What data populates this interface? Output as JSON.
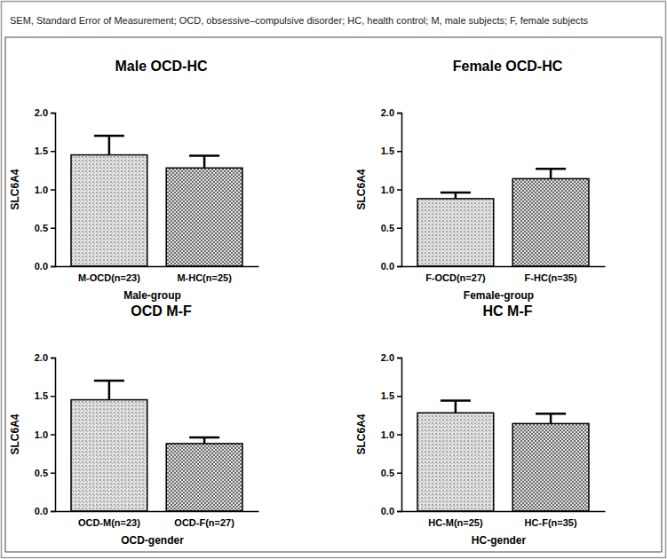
{
  "caption": "SEM, Standard Error of Measurement; OCD, obsessive–compulsive disorder; HC, health control; M, male subjects; F, female subjects",
  "chart_data": [
    {
      "type": "bar",
      "title": "Male OCD-HC",
      "x_label": "Male-group",
      "y_label": "SLC6A4",
      "categories": [
        "M-OCD(n=23)",
        "M-HC(n=25)"
      ],
      "values": [
        1.45,
        1.28
      ],
      "errors": [
        0.25,
        0.16
      ],
      "colors": [
        "#a8a8a8",
        "#6a6a6a"
      ],
      "ylim": [
        0,
        2
      ],
      "yticks": [
        {
          "value": 0,
          "label": "0.0"
        },
        0.5,
        {
          "value": 1,
          "label": "1.0"
        },
        1.5,
        {
          "value": 2,
          "label": "2.0"
        }
      ]
    },
    {
      "type": "bar",
      "title": "Female OCD-HC",
      "x_label": "Female-group",
      "y_label": "SLC6A4",
      "categories": [
        "F-OCD(n=27)",
        "F-HC(n=35)"
      ],
      "values": [
        0.88,
        1.14
      ],
      "errors": [
        0.08,
        0.13
      ],
      "colors": [
        "#a8a8a8",
        "#6a6a6a"
      ],
      "ylim": [
        0,
        2
      ],
      "yticks": [
        {
          "value": 0,
          "label": "0.0"
        },
        0.5,
        {
          "value": 1,
          "label": "1.0"
        },
        1.5,
        {
          "value": 2,
          "label": "2.0"
        }
      ]
    },
    {
      "type": "bar",
      "title": "OCD M-F",
      "x_label": "OCD-gender",
      "y_label": "SLC6A4",
      "categories": [
        "OCD-M(n=23)",
        "OCD-F(n=27)"
      ],
      "values": [
        1.45,
        0.88
      ],
      "errors": [
        0.25,
        0.08
      ],
      "colors": [
        "#a8a8a8",
        "#6a6a6a"
      ],
      "ylim": [
        0,
        2
      ],
      "yticks": [
        {
          "value": 0,
          "label": "0.0"
        },
        0.5,
        {
          "value": 1,
          "label": "1.0"
        },
        1.5,
        {
          "value": 2,
          "label": "2.0"
        }
      ]
    },
    {
      "type": "bar",
      "title": "HC M-F",
      "x_label": "HC-gender",
      "y_label": "SLC6A4",
      "categories": [
        "HC-M(n=25)",
        "HC-F(n=35)"
      ],
      "values": [
        1.28,
        1.14
      ],
      "errors": [
        0.16,
        0.13
      ],
      "colors": [
        "#a8a8a8",
        "#6a6a6a"
      ],
      "ylim": [
        0,
        2
      ],
      "yticks": [
        {
          "value": 0,
          "label": "0.0"
        },
        0.5,
        {
          "value": 1,
          "label": "1.0"
        },
        1.5,
        {
          "value": 2,
          "label": "2.0"
        }
      ]
    }
  ]
}
